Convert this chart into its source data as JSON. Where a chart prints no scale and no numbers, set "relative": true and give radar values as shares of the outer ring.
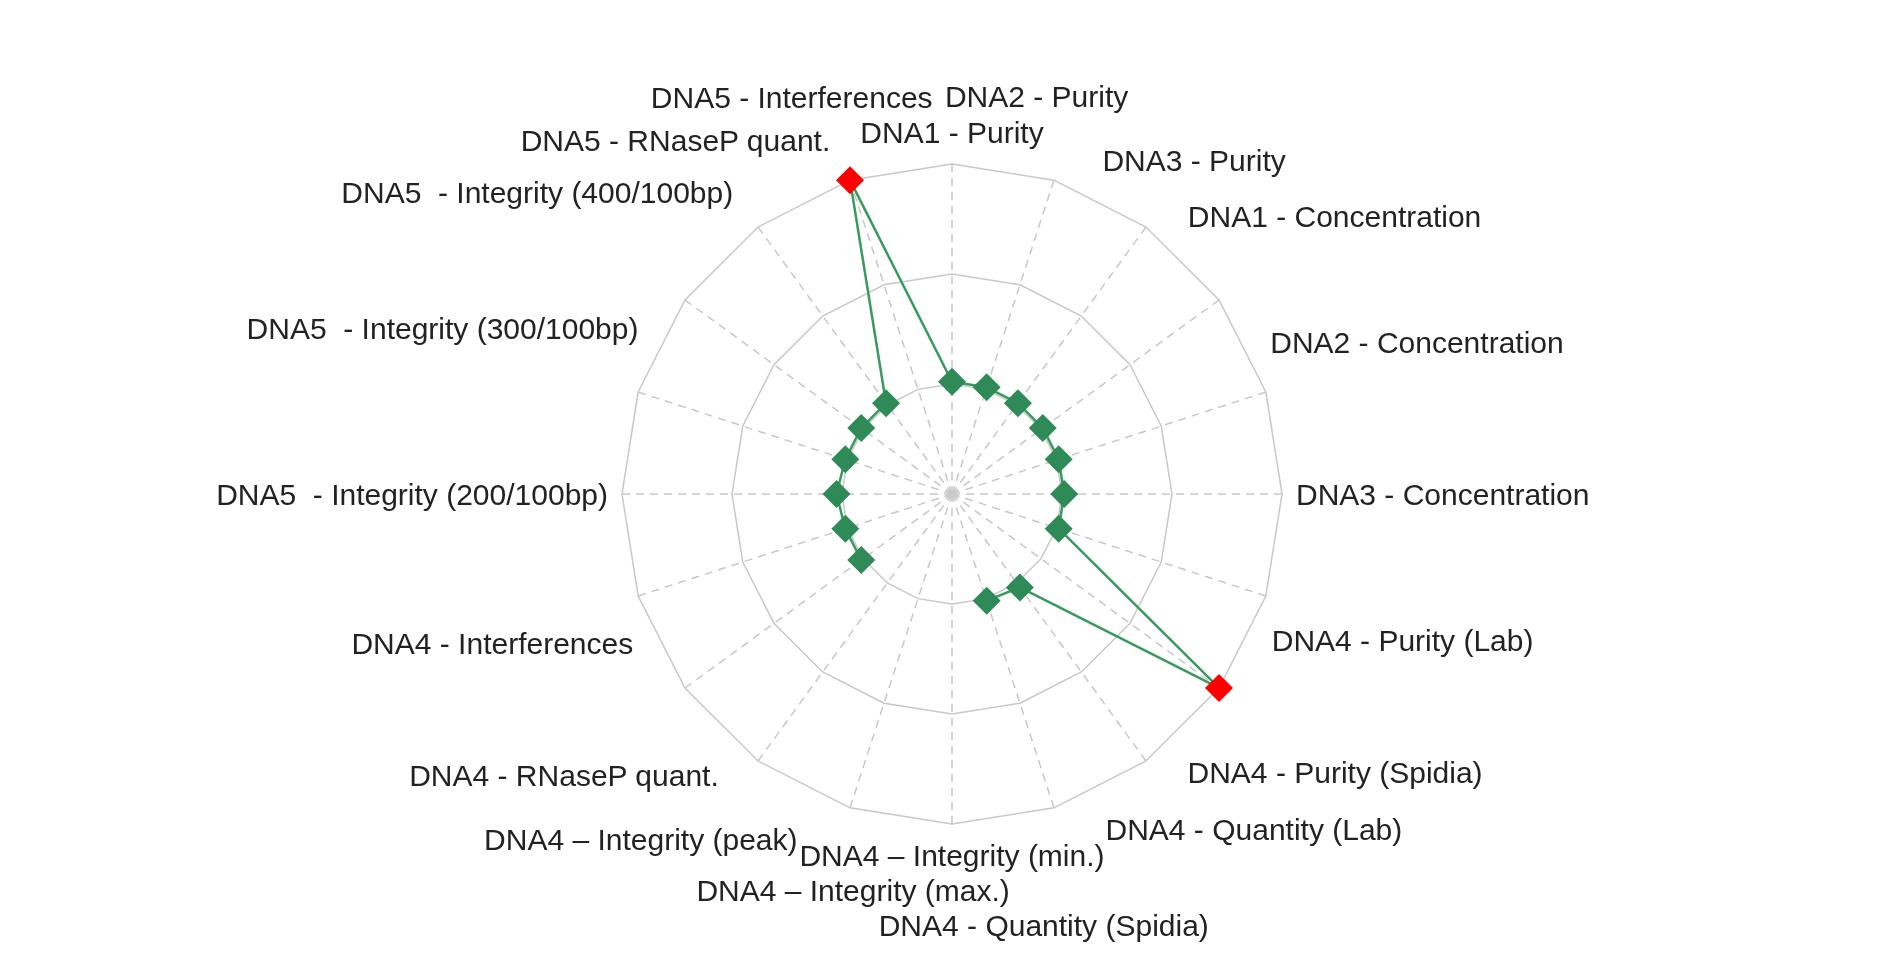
{
  "chart_data": {
    "type": "radar",
    "relative": true,
    "grid": true,
    "marker": "diamond",
    "line_style": "solid",
    "categories": [
      "DNA1 - Purity",
      "DNA2 - Purity",
      "DNA3 - Purity",
      "DNA1 - Concentration",
      "DNA2 - Concentration",
      "DNA3 - Concentration",
      "DNA4 - Purity (Lab)",
      "DNA4 - Purity (Spidia)",
      "DNA4 - Quantity (Lab)",
      "DNA4 - Quantity (Spidia)",
      "DNA4 – Integrity (min.)",
      "DNA4 – Integrity (max.)",
      "DNA4 – Integrity (peak)",
      "DNA4 - RNaseP quant.",
      "DNA4 - Interferences",
      "DNA5  - Integrity (200/100bp)",
      "DNA5  - Integrity (300/100bp)",
      "DNA5  - Integrity (400/100bp)",
      "DNA5 - RNaseP quant.",
      "DNA5 - Interferences"
    ],
    "series": [
      {
        "color": "#3a9a5e",
        "values": [
          0.34,
          0.34,
          0.34,
          0.34,
          0.34,
          0.34,
          0.34,
          1,
          0.35,
          0.34,
          null,
          null,
          null,
          0.34,
          0.34,
          0.35,
          0.34,
          0.34,
          0.34,
          1
        ],
        "colors": [
          "#2e8b57",
          "#2e8b57",
          "#2e8b57",
          "#2e8b57",
          "#2e8b57",
          "#2e8b57",
          "#2e8b57",
          "#ff0000",
          "#2e8b57",
          "#2e8b57",
          null,
          null,
          null,
          "#2e8b57",
          "#2e8b57",
          "#2e8b57",
          "#2e8b57",
          "#2e8b57",
          "#2e8b57",
          "#ff0000"
        ]
      }
    ]
  }
}
